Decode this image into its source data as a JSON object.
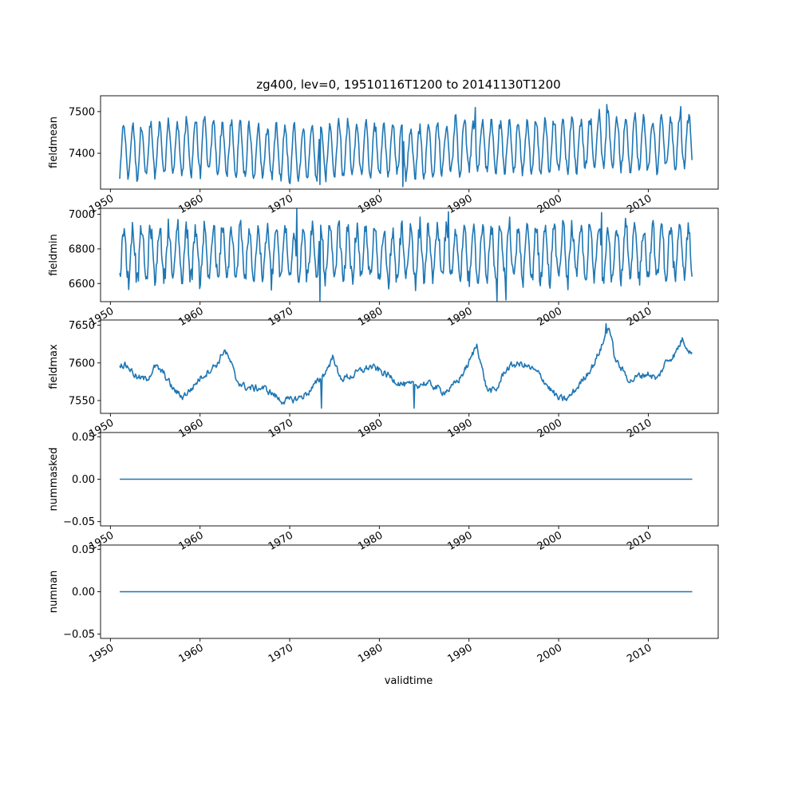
{
  "title": "zg400, lev=0, 19510116T1200 to 20141130T1200",
  "xlabel": "validtime",
  "line_color": "#1f77b4",
  "x_ticks": [
    "1950",
    "1960",
    "1970",
    "1980",
    "1990",
    "2000",
    "2010"
  ],
  "chart_data": [
    {
      "type": "line",
      "ylabel": "fieldmean",
      "xlim": [
        1948.9,
        2017.8
      ],
      "ylim": [
        7314,
        7538
      ],
      "yticks": [
        7400,
        7500
      ],
      "ytick_labels": [
        "7400",
        "7500"
      ],
      "x_start": 1951.04,
      "x_end": 2014.91,
      "kind": "seasonal",
      "baseline": [
        [
          1951,
          7405
        ],
        [
          1955,
          7408
        ],
        [
          1960,
          7418
        ],
        [
          1965,
          7405
        ],
        [
          1970,
          7400
        ],
        [
          1975,
          7408
        ],
        [
          1980,
          7410
        ],
        [
          1985,
          7405
        ],
        [
          1990,
          7418
        ],
        [
          1995,
          7415
        ],
        [
          2000,
          7418
        ],
        [
          2005,
          7430
        ],
        [
          2010,
          7420
        ],
        [
          2014.9,
          7432
        ]
      ],
      "amplitude": 62,
      "noise": 12,
      "extremes": [
        [
          1973.4,
          7325
        ],
        [
          1982.6,
          7320
        ],
        [
          1990.7,
          7510
        ],
        [
          2005.4,
          7517
        ],
        [
          2013.6,
          7512
        ]
      ],
      "series": [
        {
          "values_note_free": true
        }
      ]
    },
    {
      "type": "line",
      "ylabel": "fieldmin",
      "xlim": [
        1948.9,
        2017.8
      ],
      "ylim": [
        6495,
        7035
      ],
      "yticks": [
        6600,
        6800,
        7000
      ],
      "ytick_labels": [
        "6600",
        "6800",
        "7000"
      ],
      "x_start": 1951.04,
      "x_end": 2014.91,
      "kind": "seasonal",
      "baseline": [
        [
          1951,
          6770
        ],
        [
          1960,
          6775
        ],
        [
          1970,
          6770
        ],
        [
          1980,
          6770
        ],
        [
          1990,
          6775
        ],
        [
          2000,
          6775
        ],
        [
          2010,
          6780
        ],
        [
          2014.9,
          6780
        ]
      ],
      "amplitude": 150,
      "noise": 50,
      "extremes": [
        [
          1970.8,
          7030
        ],
        [
          1973.4,
          6500
        ],
        [
          1987.7,
          7015
        ],
        [
          1993.1,
          6500
        ],
        [
          1994.1,
          6505
        ],
        [
          2004.8,
          7010
        ]
      ],
      "series": [
        {
          "values_note_free": true
        }
      ]
    },
    {
      "type": "line",
      "ylabel": "fieldmax",
      "xlim": [
        1948.9,
        2017.8
      ],
      "ylim": [
        7533,
        7657
      ],
      "yticks": [
        7550,
        7600,
        7650
      ],
      "ytick_labels": [
        "7550",
        "7600",
        "7650"
      ],
      "x_start": 1951.04,
      "x_end": 2014.91,
      "kind": "smooth",
      "baseline": [
        [
          1951,
          7600
        ],
        [
          1952,
          7595
        ],
        [
          1953,
          7580
        ],
        [
          1954,
          7578
        ],
        [
          1955,
          7595
        ],
        [
          1956,
          7585
        ],
        [
          1957,
          7565
        ],
        [
          1958,
          7555
        ],
        [
          1959,
          7565
        ],
        [
          1960,
          7580
        ],
        [
          1961,
          7590
        ],
        [
          1962,
          7600
        ],
        [
          1962.7,
          7618
        ],
        [
          1963.5,
          7598
        ],
        [
          1964,
          7578
        ],
        [
          1965,
          7568
        ],
        [
          1966,
          7566
        ],
        [
          1967,
          7567
        ],
        [
          1968,
          7560
        ],
        [
          1969,
          7550
        ],
        [
          1970,
          7550
        ],
        [
          1971,
          7553
        ],
        [
          1972,
          7560
        ],
        [
          1973,
          7573
        ],
        [
          1974,
          7588
        ],
        [
          1974.9,
          7610
        ],
        [
          1975.5,
          7580
        ],
        [
          1976,
          7580
        ],
        [
          1977,
          7583
        ],
        [
          1978,
          7590
        ],
        [
          1979,
          7595
        ],
        [
          1980,
          7590
        ],
        [
          1981,
          7583
        ],
        [
          1982,
          7575
        ],
        [
          1983,
          7570
        ],
        [
          1984,
          7570
        ],
        [
          1985,
          7573
        ],
        [
          1986,
          7570
        ],
        [
          1987,
          7562
        ],
        [
          1988,
          7566
        ],
        [
          1989,
          7580
        ],
        [
          1990,
          7600
        ],
        [
          1990.9,
          7625
        ],
        [
          1991.5,
          7590
        ],
        [
          1992,
          7565
        ],
        [
          1993,
          7562
        ],
        [
          1994,
          7590
        ],
        [
          1995,
          7598
        ],
        [
          1996,
          7598
        ],
        [
          1997,
          7592
        ],
        [
          1998,
          7583
        ],
        [
          1999,
          7566
        ],
        [
          2000,
          7552
        ],
        [
          2001,
          7552
        ],
        [
          2002,
          7566
        ],
        [
          2003,
          7583
        ],
        [
          2004,
          7600
        ],
        [
          2005,
          7628
        ],
        [
          2005.6,
          7650
        ],
        [
          2006.3,
          7605
        ],
        [
          2007,
          7592
        ],
        [
          2008,
          7576
        ],
        [
          2009,
          7583
        ],
        [
          2010,
          7586
        ],
        [
          2011,
          7578
        ],
        [
          2012,
          7602
        ],
        [
          2013,
          7612
        ],
        [
          2013.8,
          7632
        ],
        [
          2014.9,
          7611
        ]
      ],
      "amplitude": 0,
      "noise": 5,
      "extremes": [
        [
          2005.3,
          7652
        ],
        [
          1983.9,
          7540
        ],
        [
          1973.5,
          7540
        ]
      ],
      "series": [
        {
          "values_note_free": true
        }
      ]
    },
    {
      "type": "line",
      "ylabel": "nummasked",
      "xlim": [
        1948.9,
        2017.8
      ],
      "ylim": [
        -0.055,
        0.055
      ],
      "yticks": [
        -0.05,
        0.0,
        0.05
      ],
      "ytick_labels": [
        "−0.05",
        "0.00",
        "0.05"
      ],
      "x": [
        1951.04,
        2014.91
      ],
      "y": [
        0,
        0
      ],
      "kind": "flat"
    },
    {
      "type": "line",
      "ylabel": "numnan",
      "xlim": [
        1948.9,
        2017.8
      ],
      "ylim": [
        -0.055,
        0.055
      ],
      "yticks": [
        -0.05,
        0.0,
        0.05
      ],
      "ytick_labels": [
        "−0.05",
        "0.00",
        "0.05"
      ],
      "x": [
        1951.04,
        2014.91
      ],
      "y": [
        0,
        0
      ],
      "kind": "flat"
    }
  ]
}
